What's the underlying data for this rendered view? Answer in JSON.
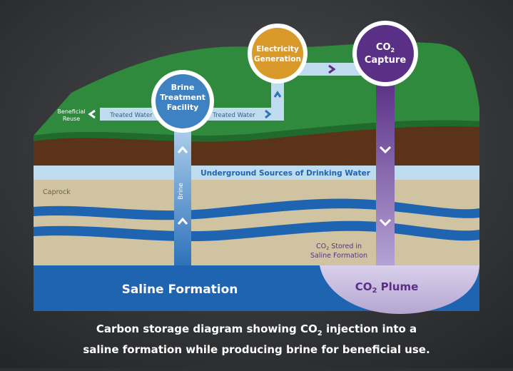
{
  "diagram": {
    "layers": {
      "usdw_label": "Underground Sources of Drinking Water",
      "caprock_label": "Caprock",
      "saline_formation_label": "Saline Formation"
    },
    "nodes": {
      "brine_treatment": [
        "Brine",
        "Treatment",
        "Facility"
      ],
      "electricity_generation": [
        "Electricity",
        "Generation"
      ],
      "co2_capture": {
        "co": "CO",
        "sub": "2",
        "line2": "Capture"
      }
    },
    "flows": {
      "treated_water_left": "Treated Water",
      "treated_water_right": "Treated Water",
      "beneficial_reuse": [
        "Beneficial",
        "Reuse"
      ],
      "brine": "Brine"
    },
    "co2": {
      "stored_line1_co": "CO",
      "stored_line1_sub": "2",
      "stored_line1_rest": " Stored in",
      "stored_line2": "Saline Formation",
      "plume_co": "CO",
      "plume_sub": "2",
      "plume_rest": " Plume"
    }
  },
  "caption": {
    "line1_a": "Carbon storage diagram showing CO",
    "line1_sub": "2",
    "line1_b": " injection into a",
    "line2": "saline formation while producing brine for beneficial use."
  },
  "colors": {
    "green": "#2f8a3e",
    "brown": "#5a3319",
    "usdw": "#bfdcef",
    "caprock": "#cfc3a2",
    "saline": "#1f64b0",
    "co2": "#6a3d98",
    "electricity": "#d99a2b"
  }
}
